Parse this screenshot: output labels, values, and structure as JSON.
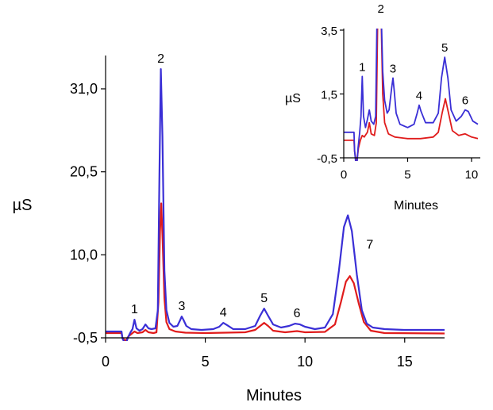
{
  "chart_data": [
    {
      "type": "line",
      "title": "",
      "xlabel": "Minutes",
      "ylabel": "µS",
      "xlim": [
        0,
        17
      ],
      "ylim": [
        -0.5,
        31.0
      ],
      "xticks": [
        "0",
        "5",
        "10",
        "15"
      ],
      "yticks": [
        "-0,5",
        "10,0",
        "20,5",
        "31,0"
      ],
      "series": [
        {
          "color": "#3a2fd6",
          "points": [
            [
              0,
              0.3
            ],
            [
              0.8,
              0.3
            ],
            [
              0.85,
              -0.6
            ],
            [
              1.0,
              -1.3
            ],
            [
              1.15,
              -0.3
            ],
            [
              1.25,
              0.2
            ],
            [
              1.35,
              0.6
            ],
            [
              1.45,
              1.8
            ],
            [
              1.55,
              0.7
            ],
            [
              1.7,
              0.4
            ],
            [
              1.85,
              0.6
            ],
            [
              2.0,
              1.2
            ],
            [
              2.15,
              0.7
            ],
            [
              2.3,
              0.6
            ],
            [
              2.5,
              0.7
            ],
            [
              2.62,
              3.0
            ],
            [
              2.7,
              20.0
            ],
            [
              2.77,
              33.5
            ],
            [
              2.85,
              25.0
            ],
            [
              2.95,
              8.0
            ],
            [
              3.05,
              3.0
            ],
            [
              3.2,
              1.4
            ],
            [
              3.4,
              0.9
            ],
            [
              3.6,
              1.0
            ],
            [
              3.75,
              1.8
            ],
            [
              3.82,
              2.2
            ],
            [
              3.9,
              1.8
            ],
            [
              4.05,
              1.0
            ],
            [
              4.3,
              0.6
            ],
            [
              4.8,
              0.5
            ],
            [
              5.4,
              0.6
            ],
            [
              5.7,
              0.9
            ],
            [
              5.9,
              1.4
            ],
            [
              6.1,
              1.1
            ],
            [
              6.4,
              0.6
            ],
            [
              7.0,
              0.6
            ],
            [
              7.5,
              1.0
            ],
            [
              7.75,
              2.3
            ],
            [
              7.95,
              3.2
            ],
            [
              8.15,
              2.3
            ],
            [
              8.4,
              1.2
            ],
            [
              8.8,
              0.8
            ],
            [
              9.2,
              1.0
            ],
            [
              9.5,
              1.3
            ],
            [
              9.75,
              1.2
            ],
            [
              10.0,
              0.9
            ],
            [
              10.5,
              0.6
            ],
            [
              11.0,
              0.8
            ],
            [
              11.4,
              2.5
            ],
            [
              11.7,
              8.0
            ],
            [
              11.95,
              13.5
            ],
            [
              12.15,
              15.0
            ],
            [
              12.35,
              13.0
            ],
            [
              12.6,
              7.5
            ],
            [
              12.85,
              3.0
            ],
            [
              13.1,
              1.3
            ],
            [
              13.4,
              0.8
            ],
            [
              14.0,
              0.6
            ],
            [
              15.0,
              0.5
            ],
            [
              17.0,
              0.5
            ]
          ]
        },
        {
          "color": "#e01c1c",
          "points": [
            [
              0,
              0.1
            ],
            [
              0.8,
              0.1
            ],
            [
              0.85,
              -0.5
            ],
            [
              1.0,
              -0.9
            ],
            [
              1.15,
              -0.3
            ],
            [
              1.3,
              0.0
            ],
            [
              1.45,
              0.3
            ],
            [
              1.6,
              0.1
            ],
            [
              1.85,
              0.2
            ],
            [
              2.0,
              0.5
            ],
            [
              2.15,
              0.2
            ],
            [
              2.4,
              0.1
            ],
            [
              2.55,
              0.2
            ],
            [
              2.65,
              4.0
            ],
            [
              2.73,
              13.0
            ],
            [
              2.79,
              16.5
            ],
            [
              2.86,
              12.0
            ],
            [
              2.95,
              4.5
            ],
            [
              3.05,
              1.5
            ],
            [
              3.2,
              0.6
            ],
            [
              3.5,
              0.3
            ],
            [
              4.0,
              0.15
            ],
            [
              5.0,
              0.1
            ],
            [
              6.0,
              0.15
            ],
            [
              7.0,
              0.2
            ],
            [
              7.5,
              0.5
            ],
            [
              7.8,
              1.1
            ],
            [
              7.95,
              1.4
            ],
            [
              8.15,
              1.0
            ],
            [
              8.4,
              0.4
            ],
            [
              9.0,
              0.2
            ],
            [
              9.6,
              0.35
            ],
            [
              10.0,
              0.2
            ],
            [
              11.0,
              0.25
            ],
            [
              11.5,
              1.2
            ],
            [
              11.8,
              4.0
            ],
            [
              12.05,
              6.6
            ],
            [
              12.25,
              7.3
            ],
            [
              12.45,
              6.4
            ],
            [
              12.7,
              3.8
            ],
            [
              12.95,
              1.5
            ],
            [
              13.3,
              0.4
            ],
            [
              14.0,
              0.1
            ],
            [
              17.0,
              0.05
            ]
          ]
        }
      ],
      "annotations": [
        {
          "text": "1",
          "x": 1.45,
          "y": 1.8
        },
        {
          "text": "2",
          "x": 2.77,
          "y": 33.5
        },
        {
          "text": "3",
          "x": 3.82,
          "y": 2.2
        },
        {
          "text": "4",
          "x": 5.9,
          "y": 1.4
        },
        {
          "text": "5",
          "x": 7.95,
          "y": 3.2
        },
        {
          "text": "6",
          "x": 9.6,
          "y": 1.3
        },
        {
          "text": "7",
          "x": 13.25,
          "y": 10.0
        }
      ]
    },
    {
      "type": "line",
      "title": "",
      "xlabel": "Minutes",
      "ylabel": "µS",
      "xlim": [
        0,
        10.5
      ],
      "ylim": [
        -0.5,
        3.5
      ],
      "xticks": [
        "0",
        "5",
        "10"
      ],
      "yticks": [
        "-0,5",
        "1,5",
        "3,5"
      ],
      "series": [
        {
          "color": "#3a2fd6",
          "points": [
            [
              0,
              0.3
            ],
            [
              0.8,
              0.3
            ],
            [
              0.85,
              -0.3
            ],
            [
              1.0,
              -0.9
            ],
            [
              1.12,
              -0.2
            ],
            [
              1.25,
              0.3
            ],
            [
              1.35,
              0.8
            ],
            [
              1.45,
              2.05
            ],
            [
              1.55,
              0.8
            ],
            [
              1.7,
              0.45
            ],
            [
              1.85,
              0.7
            ],
            [
              2.0,
              1.0
            ],
            [
              2.15,
              0.65
            ],
            [
              2.35,
              0.55
            ],
            [
              2.5,
              0.8
            ],
            [
              2.62,
              4.5
            ],
            [
              2.77,
              5.0
            ],
            [
              2.9,
              4.5
            ],
            [
              3.05,
              2.2
            ],
            [
              3.2,
              1.3
            ],
            [
              3.4,
              0.9
            ],
            [
              3.55,
              1.0
            ],
            [
              3.75,
              1.7
            ],
            [
              3.85,
              2.0
            ],
            [
              3.95,
              1.6
            ],
            [
              4.1,
              0.9
            ],
            [
              4.4,
              0.55
            ],
            [
              5.0,
              0.45
            ],
            [
              5.5,
              0.55
            ],
            [
              5.75,
              0.9
            ],
            [
              5.9,
              1.15
            ],
            [
              6.05,
              0.95
            ],
            [
              6.4,
              0.6
            ],
            [
              7.0,
              0.6
            ],
            [
              7.4,
              0.9
            ],
            [
              7.65,
              2.0
            ],
            [
              7.9,
              2.65
            ],
            [
              8.15,
              2.0
            ],
            [
              8.4,
              1.0
            ],
            [
              8.8,
              0.65
            ],
            [
              9.2,
              0.8
            ],
            [
              9.5,
              1.0
            ],
            [
              9.75,
              0.95
            ],
            [
              10.1,
              0.65
            ],
            [
              10.5,
              0.55
            ]
          ]
        },
        {
          "color": "#e01c1c",
          "points": [
            [
              0,
              0.05
            ],
            [
              0.8,
              0.05
            ],
            [
              0.85,
              -0.3
            ],
            [
              1.0,
              -0.7
            ],
            [
              1.15,
              -0.2
            ],
            [
              1.3,
              0.05
            ],
            [
              1.45,
              0.2
            ],
            [
              1.6,
              0.15
            ],
            [
              1.85,
              0.3
            ],
            [
              2.0,
              0.6
            ],
            [
              2.15,
              0.25
            ],
            [
              2.4,
              0.2
            ],
            [
              2.55,
              0.6
            ],
            [
              2.68,
              4.5
            ],
            [
              2.79,
              5.0
            ],
            [
              2.92,
              4.0
            ],
            [
              3.05,
              1.5
            ],
            [
              3.2,
              0.6
            ],
            [
              3.5,
              0.25
            ],
            [
              4.0,
              0.15
            ],
            [
              5.0,
              0.1
            ],
            [
              6.0,
              0.1
            ],
            [
              7.0,
              0.15
            ],
            [
              7.4,
              0.3
            ],
            [
              7.7,
              0.9
            ],
            [
              7.95,
              1.35
            ],
            [
              8.2,
              0.9
            ],
            [
              8.5,
              0.35
            ],
            [
              9.0,
              0.2
            ],
            [
              9.5,
              0.25
            ],
            [
              10.0,
              0.15
            ],
            [
              10.5,
              0.1
            ]
          ]
        }
      ],
      "annotations": [
        {
          "text": "1",
          "x": 1.45,
          "y": 2.05
        },
        {
          "text": "2",
          "x": 2.9,
          "y": 4.5
        },
        {
          "text": "3",
          "x": 3.85,
          "y": 2.0
        },
        {
          "text": "4",
          "x": 5.9,
          "y": 1.15
        },
        {
          "text": "5",
          "x": 7.9,
          "y": 2.65
        },
        {
          "text": "6",
          "x": 9.5,
          "y": 1.0
        }
      ]
    }
  ]
}
